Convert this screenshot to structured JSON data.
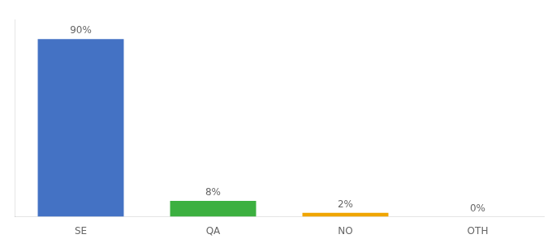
{
  "chart_data": {
    "type": "bar",
    "categories": [
      "SE",
      "QA",
      "NO",
      "OTH"
    ],
    "values": [
      90,
      8,
      2,
      0
    ],
    "value_labels": [
      "90%",
      "8%",
      "2%",
      "0%"
    ],
    "colors": [
      "#4472c4",
      "#3cb040",
      "#f0a500",
      "#f0a500"
    ],
    "ylim": [
      0,
      100
    ],
    "grid": false,
    "data_labels": true,
    "tick_labels": "x"
  }
}
